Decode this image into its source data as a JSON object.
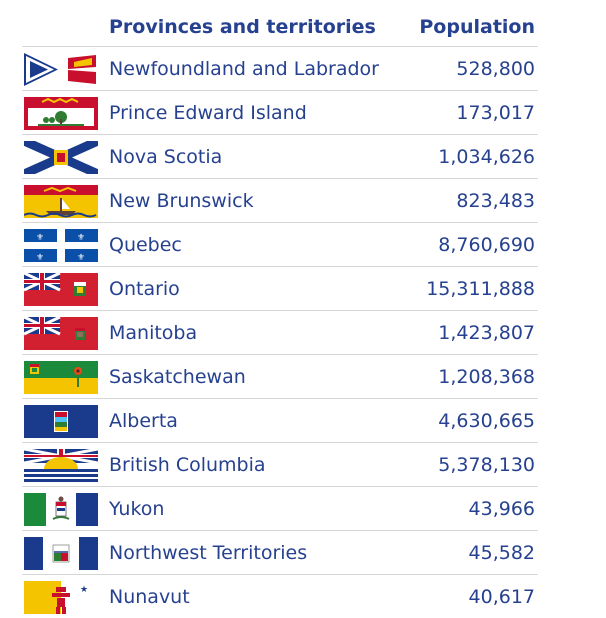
{
  "table": {
    "header": {
      "name": "Provinces and territories",
      "population": "Population"
    },
    "rows": [
      {
        "name": "Newfoundland and Labrador",
        "population": "528,800",
        "flag_icon": "newfoundland-flag-icon"
      },
      {
        "name": "Prince Edward Island",
        "population": "173,017",
        "flag_icon": "pei-flag-icon"
      },
      {
        "name": "Nova Scotia",
        "population": "1,034,626",
        "flag_icon": "nova-scotia-flag-icon"
      },
      {
        "name": "New Brunswick",
        "population": "823,483",
        "flag_icon": "new-brunswick-flag-icon"
      },
      {
        "name": "Quebec",
        "population": "8,760,690",
        "flag_icon": "quebec-flag-icon"
      },
      {
        "name": "Ontario",
        "population": "15,311,888",
        "flag_icon": "ontario-flag-icon"
      },
      {
        "name": "Manitoba",
        "population": "1,423,807",
        "flag_icon": "manitoba-flag-icon"
      },
      {
        "name": "Saskatchewan",
        "population": "1,208,368",
        "flag_icon": "saskatchewan-flag-icon"
      },
      {
        "name": "Alberta",
        "population": "4,630,665",
        "flag_icon": "alberta-flag-icon"
      },
      {
        "name": "British Columbia",
        "population": "5,378,130",
        "flag_icon": "british-columbia-flag-icon"
      },
      {
        "name": "Yukon",
        "population": "43,966",
        "flag_icon": "yukon-flag-icon"
      },
      {
        "name": "Northwest Territories",
        "population": "45,582",
        "flag_icon": "northwest-territories-flag-icon"
      },
      {
        "name": "Nunavut",
        "population": "40,617",
        "flag_icon": "nunavut-flag-icon"
      }
    ]
  },
  "colors": {
    "text": "#26418f",
    "divider": "#d6d6d6",
    "background": "#ffffff"
  }
}
